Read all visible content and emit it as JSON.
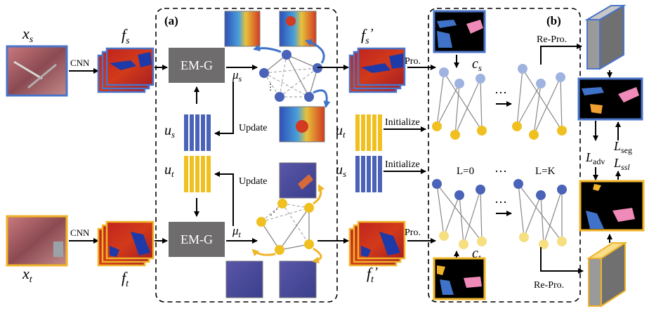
{
  "panels": {
    "a_label": "(a)",
    "b_label": "(b)"
  },
  "source": {
    "x_label": "x",
    "x_sub": "s",
    "f_label": "f",
    "f_sub": "s",
    "cnn": "CNN",
    "emg": "EM-G",
    "mu": "μ",
    "mu_sub": "s",
    "u": "u",
    "u_sub": "s",
    "update": "Update",
    "fp_label": "f",
    "fp_sub": "s",
    "fp_prime": "’",
    "pro": "Pro.",
    "c": "c",
    "c_sub": "s",
    "repro": "Re-Pro."
  },
  "target": {
    "x_label": "x",
    "x_sub": "t",
    "f_label": "f",
    "f_sub": "t",
    "cnn": "CNN",
    "emg": "EM-G",
    "mu": "μ",
    "mu_sub": "t",
    "u": "u",
    "u_sub": "t",
    "update": "Update",
    "fp_label": "f",
    "fp_sub": "t",
    "fp_prime": "’",
    "pro": "Pro.",
    "c": "c",
    "c_sub": "t",
    "repro": "Re-Pro."
  },
  "graph_stage": {
    "init_top_u": "u",
    "init_top_sub": "t",
    "init_bottom_u": "u",
    "init_bottom_sub": "s",
    "initialize": "Initialize",
    "layer_start": "L=0",
    "layer_end": "L=K",
    "ellipsis": "⋯"
  },
  "losses": {
    "adv": "L",
    "adv_sub": "adv",
    "seg": "L",
    "seg_sub": "seg",
    "ssl": "L",
    "ssl_sub": "ssl"
  },
  "colors": {
    "blue_node": "#4a63b8",
    "light_blue_node": "#9fb3e0",
    "yellow_node": "#f0c020",
    "light_yellow_node": "#f5df80",
    "emg_box": "#6e6c6c",
    "source_border": "#4a74c9",
    "target_border": "#f0b428",
    "disc_gray": "#8f8f8f",
    "disc_yellow": "#f3cf63"
  }
}
